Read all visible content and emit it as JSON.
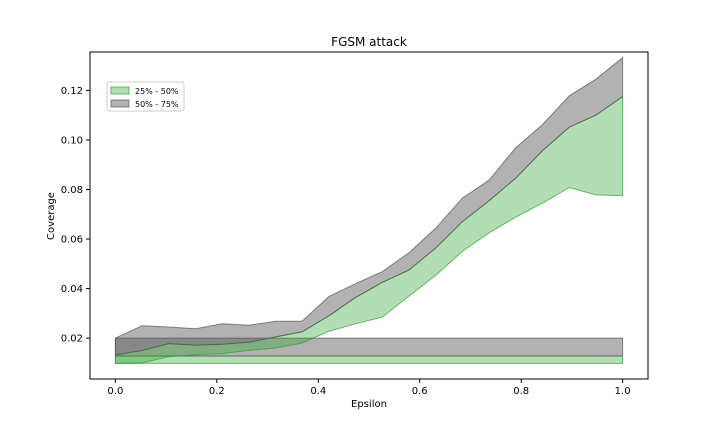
{
  "chart_data": {
    "type": "area",
    "title": "FGSM attack",
    "xlabel": "Epsilon",
    "ylabel": "Coverage",
    "xlim": [
      -0.05,
      1.05
    ],
    "ylim": [
      0.0035,
      0.1355
    ],
    "xticks": [
      0.0,
      0.2,
      0.4,
      0.6,
      0.8,
      1.0
    ],
    "xtick_labels": [
      "0.0",
      "0.2",
      "0.4",
      "0.6",
      "0.8",
      "1.0"
    ],
    "yticks": [
      0.02,
      0.04,
      0.06,
      0.08,
      0.1,
      0.12
    ],
    "ytick_labels": [
      "0.02",
      "0.04",
      "0.06",
      "0.08",
      "0.10",
      "0.12"
    ],
    "legend": {
      "placement": "upper-left"
    },
    "grid": false,
    "series": [
      {
        "name": "25% - 50%",
        "color": "#2ca02c",
        "opacity": 0.36,
        "x": [
          0.0,
          1.0
        ],
        "lower": [
          0.0098,
          0.0098
        ],
        "upper": [
          0.0128,
          0.0128
        ]
      },
      {
        "name": "50% - 75%",
        "color": "#555555",
        "opacity": 0.45,
        "x": [
          0.0,
          1.0
        ],
        "lower": [
          0.0128,
          0.0128
        ],
        "upper": [
          0.02,
          0.02
        ]
      },
      {
        "name": "25% - 50%",
        "color": "#2ca02c",
        "opacity": 0.36,
        "x": [
          0.0,
          0.053,
          0.105,
          0.158,
          0.211,
          0.263,
          0.316,
          0.368,
          0.421,
          0.474,
          0.526,
          0.579,
          0.632,
          0.684,
          0.737,
          0.789,
          0.842,
          0.895,
          0.947,
          1.0
        ],
        "lower": [
          0.0098,
          0.01,
          0.0125,
          0.0133,
          0.0138,
          0.015,
          0.016,
          0.018,
          0.0228,
          0.0258,
          0.0285,
          0.037,
          0.0455,
          0.055,
          0.0625,
          0.0688,
          0.0745,
          0.0808,
          0.0778,
          0.0775
        ],
        "upper": [
          0.0132,
          0.015,
          0.0178,
          0.0172,
          0.0175,
          0.0183,
          0.0205,
          0.0225,
          0.029,
          0.0365,
          0.0425,
          0.0475,
          0.0565,
          0.067,
          0.0755,
          0.0845,
          0.0957,
          0.1052,
          0.11,
          0.1175
        ]
      },
      {
        "name": "50% - 75%",
        "color": "#555555",
        "opacity": 0.45,
        "x": [
          0.0,
          0.053,
          0.105,
          0.158,
          0.211,
          0.263,
          0.316,
          0.368,
          0.421,
          0.474,
          0.526,
          0.579,
          0.632,
          0.684,
          0.737,
          0.789,
          0.842,
          0.895,
          0.947,
          1.0
        ],
        "lower": [
          0.0132,
          0.015,
          0.0178,
          0.0172,
          0.0175,
          0.0183,
          0.0205,
          0.0225,
          0.029,
          0.0365,
          0.0425,
          0.0475,
          0.0565,
          0.067,
          0.0755,
          0.0845,
          0.0957,
          0.1052,
          0.11,
          0.1175
        ],
        "upper": [
          0.02,
          0.025,
          0.0245,
          0.0238,
          0.0258,
          0.0252,
          0.0268,
          0.0268,
          0.0368,
          0.042,
          0.0468,
          0.0545,
          0.0645,
          0.0765,
          0.0838,
          0.0968,
          0.1062,
          0.1178,
          0.1245,
          0.1332
        ]
      }
    ]
  }
}
